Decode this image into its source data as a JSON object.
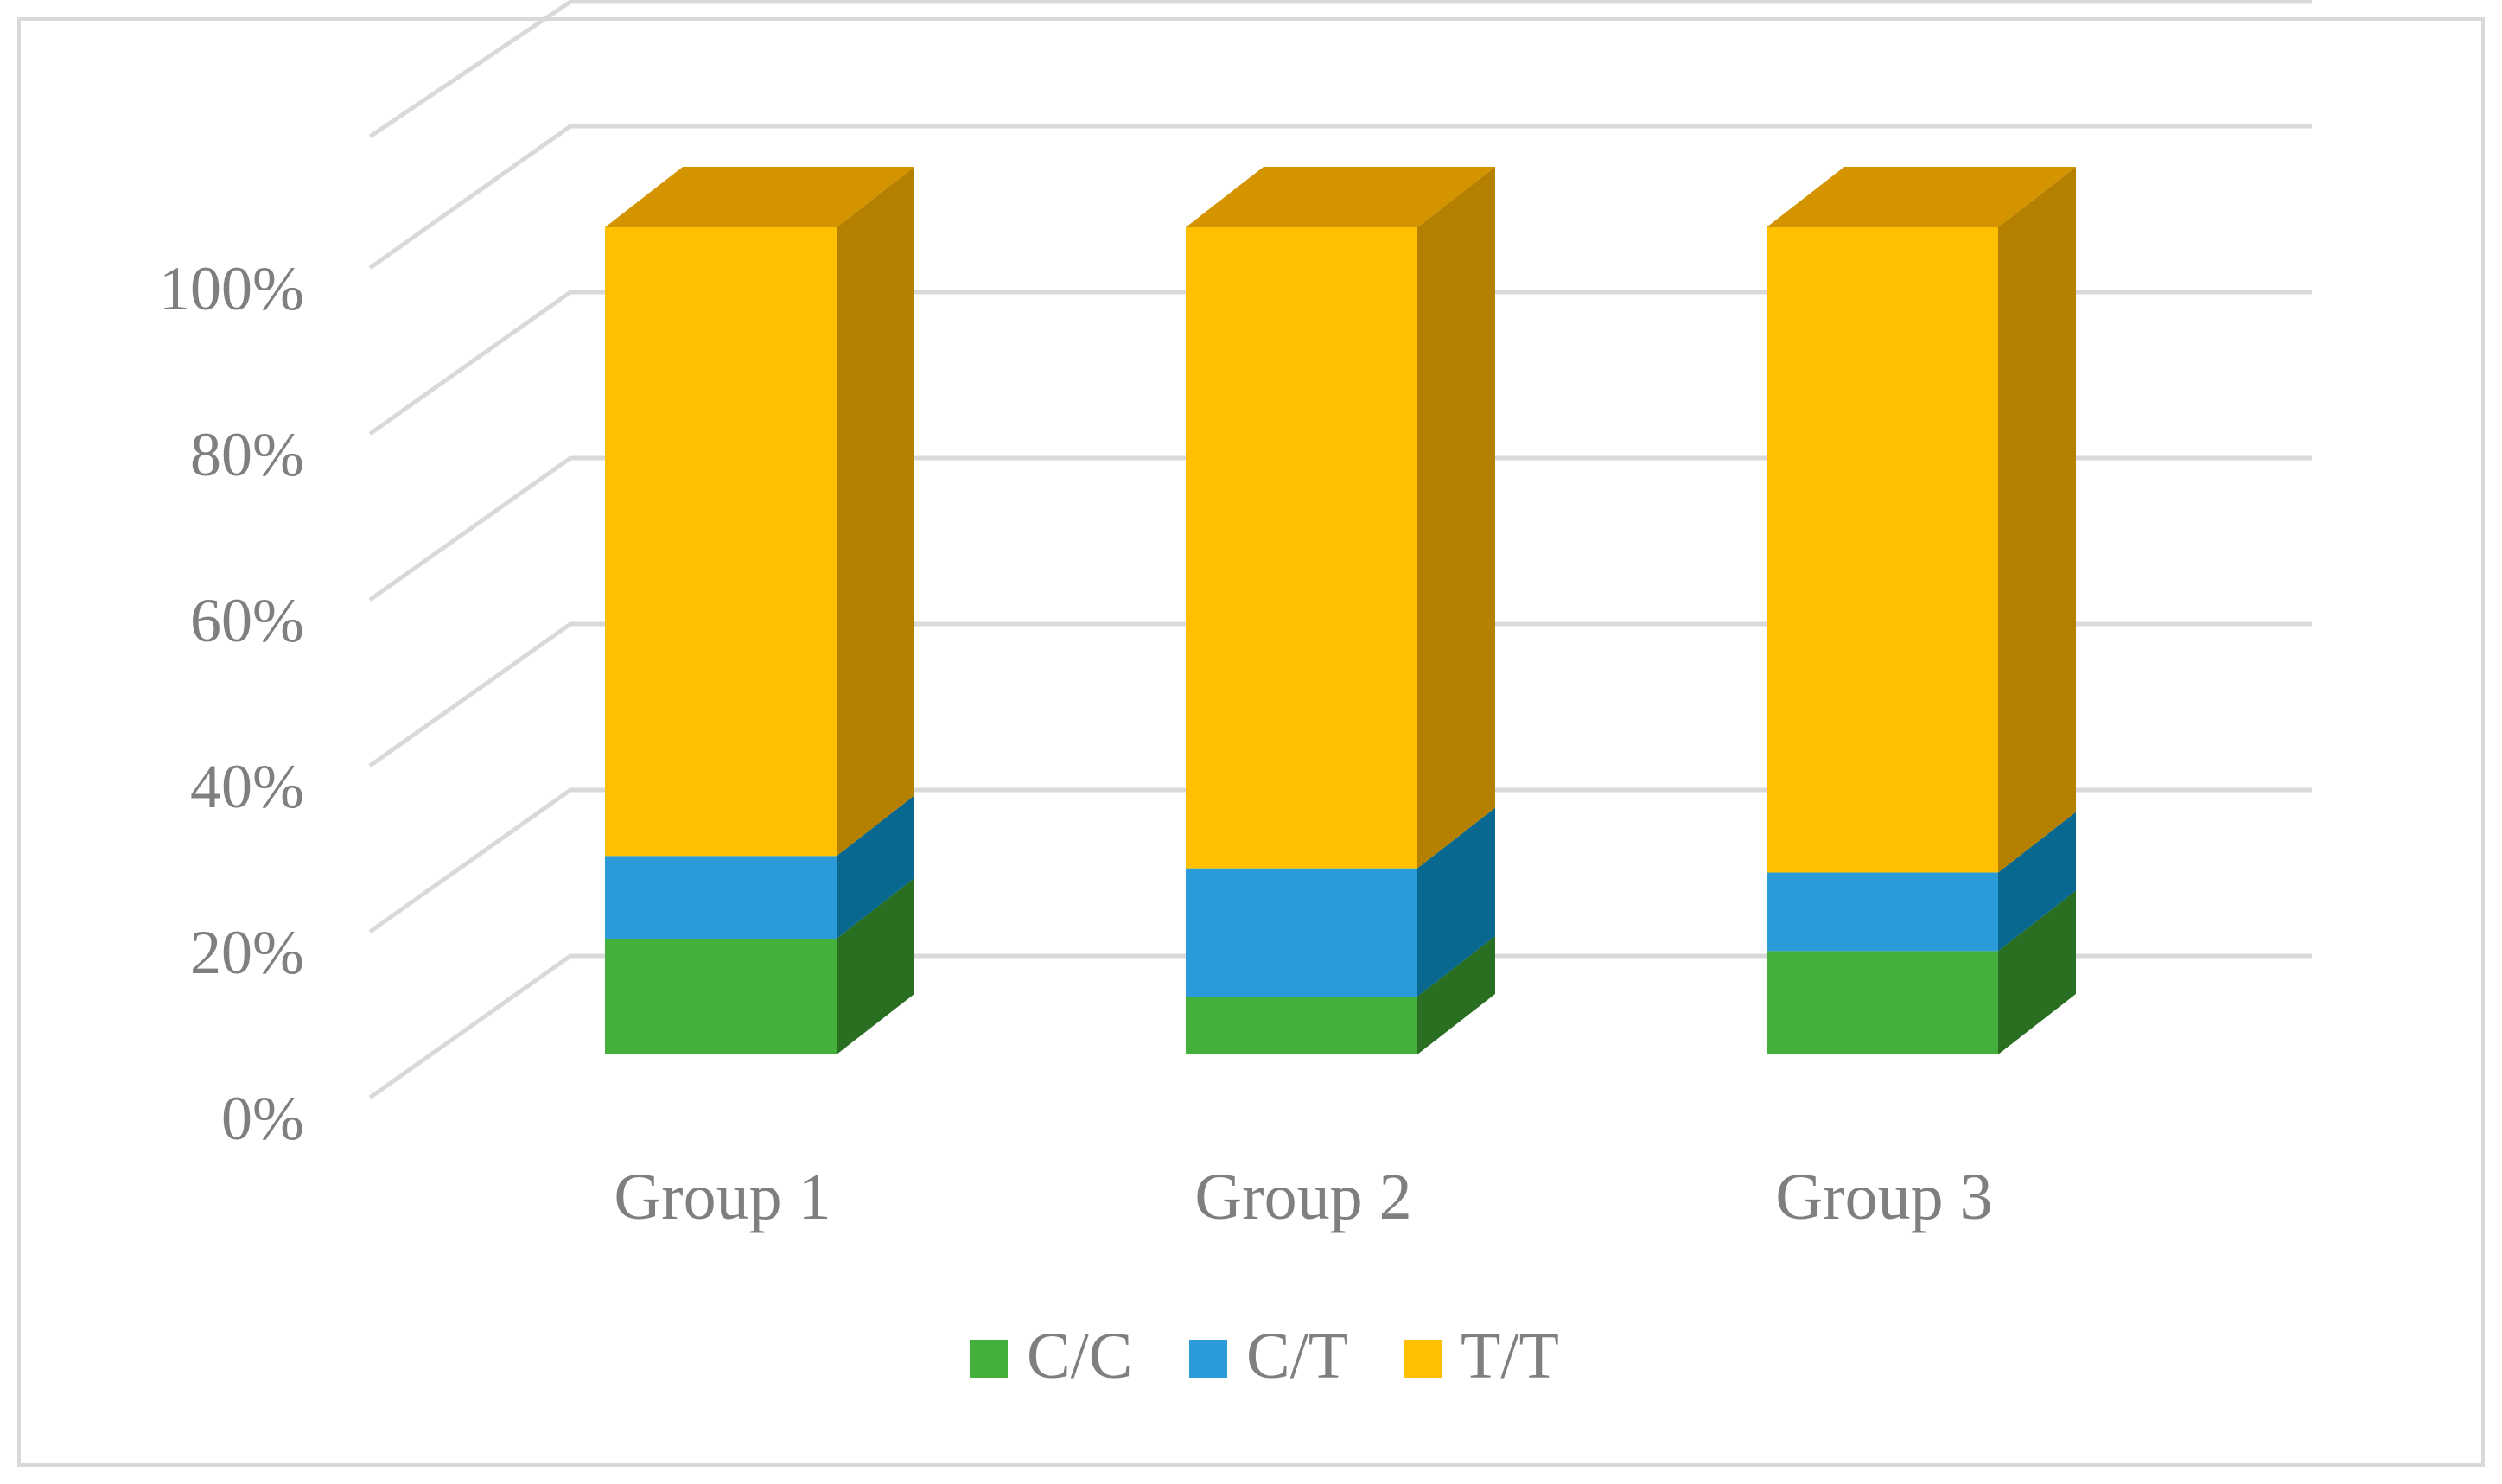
{
  "chart_data": {
    "type": "bar",
    "stacked": true,
    "percent_stacked": true,
    "three_d": true,
    "categories": [
      "Group 1",
      "Group 2",
      "Group 3"
    ],
    "series": [
      {
        "name": "C/C",
        "values": [
          14,
          7,
          12.5
        ],
        "color": "#43b03c",
        "side_color": "#2a6e22"
      },
      {
        "name": "C/T",
        "values": [
          10,
          15.5,
          9.5
        ],
        "color": "#2a9bd8",
        "side_color": "#086890"
      },
      {
        "name": "T/T",
        "values": [
          76,
          77.5,
          78
        ],
        "color": "#fec000",
        "side_color": "#b58000",
        "top_color": "#d49400"
      }
    ],
    "y_ticks": [
      "0%",
      "20%",
      "40%",
      "60%",
      "80%",
      "100%"
    ],
    "ylim": [
      0,
      100
    ],
    "grid": true,
    "legend_position": "bottom"
  }
}
